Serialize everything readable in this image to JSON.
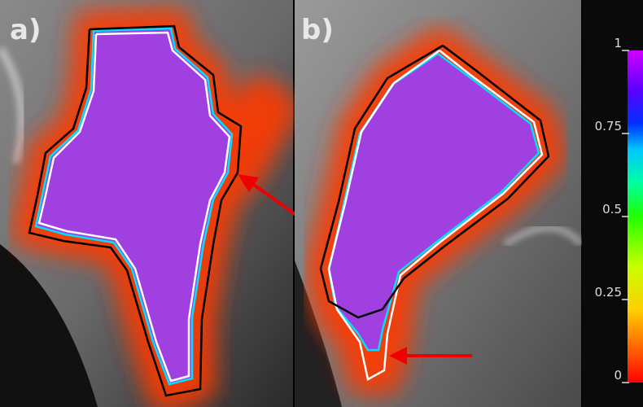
{
  "panels": [
    {
      "label": "a)"
    },
    {
      "label": "b)"
    }
  ],
  "colorbar": {
    "lim": [
      0,
      1
    ],
    "ticks": [
      1,
      0.75,
      0.5,
      0.25,
      0
    ]
  }
}
